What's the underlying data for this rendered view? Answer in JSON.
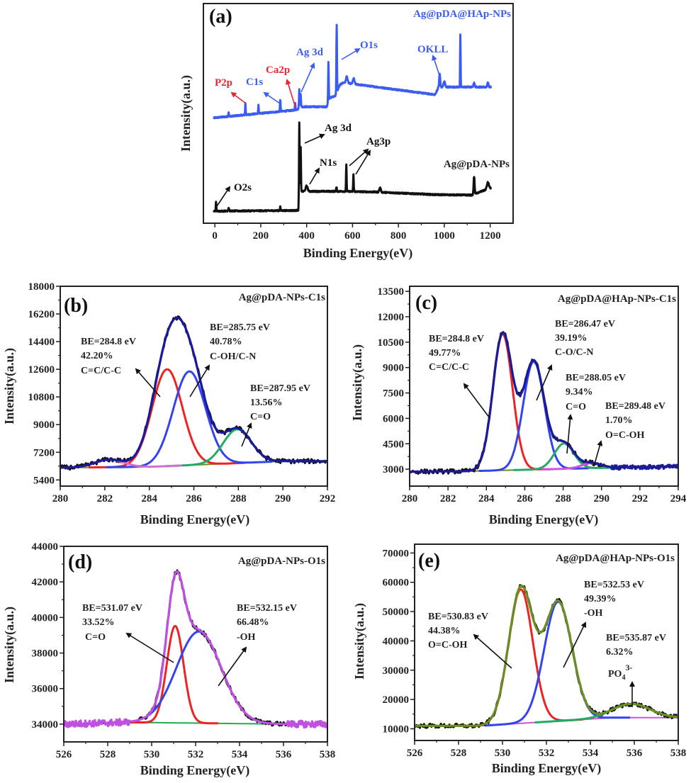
{
  "chart_data": [
    {
      "panel_label": "(a)",
      "type": "line",
      "xlabel": "Binding Energy(eV)",
      "ylabel": "Intensity(a.u.)",
      "xlim": [
        -50,
        1300
      ],
      "ylim": [
        0,
        100
      ],
      "xticks": [
        0,
        200,
        400,
        600,
        800,
        1000,
        1200
      ],
      "yticks": [],
      "grid": false,
      "series": [
        {
          "name": "Ag@pDA@HAp-NPs",
          "color": "#3b5cf0",
          "baseline": [
            [
              0,
              48
            ],
            [
              350,
              51.5
            ],
            [
              362,
              52
            ],
            [
              370,
              53
            ],
            [
              488,
              53
            ],
            [
              500,
              57
            ],
            [
              525,
              58
            ],
            [
              545,
              63
            ],
            [
              560,
              64
            ],
            [
              960,
              58.5
            ],
            [
              975,
              62
            ],
            [
              1200,
              62
            ]
          ],
          "peaks": [
            [
              60,
              2,
              3
            ],
            [
              133,
              5.5,
              2.5
            ],
            [
              190,
              4,
              3
            ],
            [
              285,
              5.5,
              3
            ],
            [
              350,
              3,
              3
            ],
            [
              368,
              8,
              3
            ],
            [
              374,
              6,
              3
            ],
            [
              495,
              18,
              3
            ],
            [
              531,
              31,
              3
            ],
            [
              575,
              3,
              8
            ],
            [
              605,
              2.5,
              8
            ],
            [
              980,
              6,
              5
            ],
            [
              1000,
              2.5,
              8
            ],
            [
              1070,
              24,
              2.5
            ],
            [
              1130,
              2,
              6
            ],
            [
              1190,
              2,
              6
            ]
          ]
        },
        {
          "name": "Ag@pDA-NPs",
          "color": "#111111",
          "baseline": [
            [
              0,
              5.5
            ],
            [
              355,
              5.8
            ],
            [
              364,
              6
            ],
            [
              370,
              14.5
            ],
            [
              560,
              14.5
            ],
            [
              700,
              14.2
            ],
            [
              960,
              13
            ],
            [
              1120,
              12.8
            ],
            [
              1200,
              16
            ]
          ],
          "peaks": [
            [
              5,
              4,
              3
            ],
            [
              60,
              1.5,
              5
            ],
            [
              285,
              1.8,
              3
            ],
            [
              368,
              34,
              3
            ],
            [
              374,
              20,
              3
            ],
            [
              400,
              2.5,
              10
            ],
            [
              530,
              2,
              3
            ],
            [
              573,
              12,
              3
            ],
            [
              604,
              8,
              3
            ],
            [
              720,
              2,
              8
            ],
            [
              1130,
              8,
              5
            ],
            [
              1190,
              3,
              10
            ]
          ]
        }
      ],
      "annotations": [
        {
          "text": "P2p",
          "color": "#ee2233"
        },
        {
          "text": "C1s",
          "color": "#3b5cf0"
        },
        {
          "text": "Ca2p",
          "color": "#ee2233"
        },
        {
          "text": "Ag 3d",
          "color": "#3b5cf0"
        },
        {
          "text": "O1s",
          "color": "#3b5cf0"
        },
        {
          "text": "OKLL",
          "color": "#3b5cf0"
        },
        {
          "text": "Ag 3d",
          "color": "#111111"
        },
        {
          "text": "N1s",
          "color": "#111111"
        },
        {
          "text": "Ag3p",
          "color": "#111111"
        },
        {
          "text": "O2s",
          "color": "#111111"
        }
      ]
    },
    {
      "panel_label": "(b)",
      "title": "Ag@pDA-NPs-C1s",
      "type": "line",
      "xlabel": "Binding Energy(eV)",
      "ylabel": "Intensity(a.u.)",
      "xlim": [
        280,
        292
      ],
      "ylim": [
        5000,
        18000
      ],
      "xticks": [
        280,
        282,
        284,
        286,
        288,
        290,
        292
      ],
      "yticks": [
        5400,
        7200,
        9000,
        10800,
        12600,
        14400,
        16200,
        18000
      ],
      "grid": false,
      "baseline": [
        [
          280,
          6200
        ],
        [
          284,
          6250
        ],
        [
          290,
          6620
        ],
        [
          292,
          6620
        ]
      ],
      "envelope_color": "#1a1a9a",
      "experimental_color": "#111111",
      "experimental_range": [
        280,
        292
      ],
      "background_color": "#7a8a20",
      "components": [
        {
          "be": "BE=284.8 eV",
          "percent": "42.20%",
          "assignment": "C=C/C-C",
          "center": 284.8,
          "height": 6300,
          "fwhm": 1.6,
          "color": "#ee2222"
        },
        {
          "be": "BE=285.75 eV",
          "percent": "40.78%",
          "assignment": "C-OH/C-N",
          "center": 285.8,
          "height": 6100,
          "fwhm": 1.7,
          "color": "#3344ee"
        },
        {
          "be": "BE=287.95 eV",
          "percent": "13.56%",
          "assignment": "C=O",
          "center": 287.95,
          "height": 2200,
          "fwhm": 1.5,
          "color": "#22aa66"
        },
        {
          "center": 282.2,
          "height": 500,
          "fwhm": 1.5,
          "color": "#d070d0"
        }
      ]
    },
    {
      "panel_label": "(c)",
      "title": "Ag@pDA@HAp-NPs-C1s",
      "type": "line",
      "xlabel": "Binding Energy(eV)",
      "ylabel": "Intensity(a.u.)",
      "xlim": [
        280,
        294
      ],
      "ylim": [
        2000,
        13800
      ],
      "xticks": [
        280,
        282,
        284,
        286,
        288,
        290,
        292,
        294
      ],
      "yticks": [
        3000,
        4500,
        6000,
        7500,
        9000,
        10500,
        12000,
        13500
      ],
      "grid": false,
      "baseline": [
        [
          280,
          2850
        ],
        [
          283,
          2880
        ],
        [
          291,
          3100
        ],
        [
          294,
          3150
        ]
      ],
      "envelope_color": "#1a1a9a",
      "experimental_color": "#111111",
      "experimental_range": [
        280,
        291
      ],
      "background_color": "#7a8a20",
      "components": [
        {
          "be": "BE=284.8 eV",
          "percent": "49.77%",
          "assignment": "C=C/C-C",
          "center": 284.85,
          "height": 8050,
          "fwhm": 1.2,
          "color": "#ee2222"
        },
        {
          "be": "BE=286.47 eV",
          "percent": "39.19%",
          "assignment": "C-O/C-N",
          "center": 286.47,
          "height": 6400,
          "fwhm": 1.3,
          "color": "#3344ee"
        },
        {
          "be": "BE=288.05 eV",
          "percent": "9.34%",
          "assignment": "C=O",
          "center": 288.05,
          "height": 1500,
          "fwhm": 1.2,
          "color": "#22aa66"
        },
        {
          "be": "BE=289.48 eV",
          "percent": "1.70%",
          "assignment": "O=C-OH",
          "center": 289.48,
          "height": 300,
          "fwhm": 1.2,
          "color": "#cc55dd"
        }
      ]
    },
    {
      "panel_label": "(d)",
      "title": "Ag@pDA-NPs-O1s",
      "type": "line",
      "xlabel": "Binding Energy(eV)",
      "ylabel": "Intensity(a.u.)",
      "xlim": [
        526,
        538
      ],
      "ylim": [
        33000,
        44000
      ],
      "xticks": [
        526,
        528,
        530,
        532,
        534,
        536,
        538
      ],
      "yticks": [
        34000,
        36000,
        38000,
        40000,
        42000,
        44000
      ],
      "grid": false,
      "baseline": [
        [
          526,
          34000
        ],
        [
          529,
          34100
        ],
        [
          536,
          34000
        ],
        [
          538,
          34000
        ]
      ],
      "envelope_color": "#c050e0",
      "experimental_color": "#111111",
      "experimental_range": [
        529,
        536.2
      ],
      "background_color": "#22aa55",
      "components": [
        {
          "be": "BE=531.07 eV",
          "percent": "33.52%",
          "assignment": "C=O",
          "center": 531.07,
          "height": 5450,
          "fwhm": 0.9,
          "color": "#ee2222"
        },
        {
          "be": "BE=532.15 eV",
          "percent": "66.48%",
          "assignment": "-OH",
          "center": 532.15,
          "height": 5150,
          "fwhm": 2.4,
          "color": "#3344ee"
        }
      ]
    },
    {
      "panel_label": "(e)",
      "title": "Ag@pDA@HAp-NPs-O1s",
      "type": "line",
      "xlabel": "Binding Energy(eV)",
      "ylabel": "Intensity(a.u.)",
      "xlim": [
        526,
        538
      ],
      "ylim": [
        6000,
        73000
      ],
      "xticks": [
        526,
        528,
        530,
        532,
        534,
        536,
        538
      ],
      "yticks": [
        10000,
        20000,
        30000,
        40000,
        50000,
        60000,
        70000
      ],
      "grid": false,
      "baseline": [
        [
          526,
          11000
        ],
        [
          529,
          11000
        ],
        [
          535,
          13800
        ],
        [
          538,
          13800
        ]
      ],
      "envelope_color": "#6b8e23",
      "experimental_color": "#111111",
      "experimental_range": [
        526,
        538
      ],
      "background_color": "#cc55dd",
      "components": [
        {
          "be": "BE=530.83 eV",
          "percent": "44.38%",
          "assignment": "O=C-OH",
          "center": 530.83,
          "height": 45700,
          "fwhm": 1.3,
          "color": "#ee2222"
        },
        {
          "be": "BE=532.53 eV",
          "percent": "49.39%",
          "assignment": "-OH",
          "center": 532.53,
          "height": 40700,
          "fwhm": 1.5,
          "color": "#3344ee"
        },
        {
          "be": "BE=535.87 eV",
          "percent": "6.32%",
          "assignment_main": "PO",
          "assignment_sub": "4",
          "assignment_sup": "3-",
          "center": 535.87,
          "height": 4700,
          "fwhm": 2.0,
          "color": "#22aa66"
        }
      ]
    }
  ]
}
